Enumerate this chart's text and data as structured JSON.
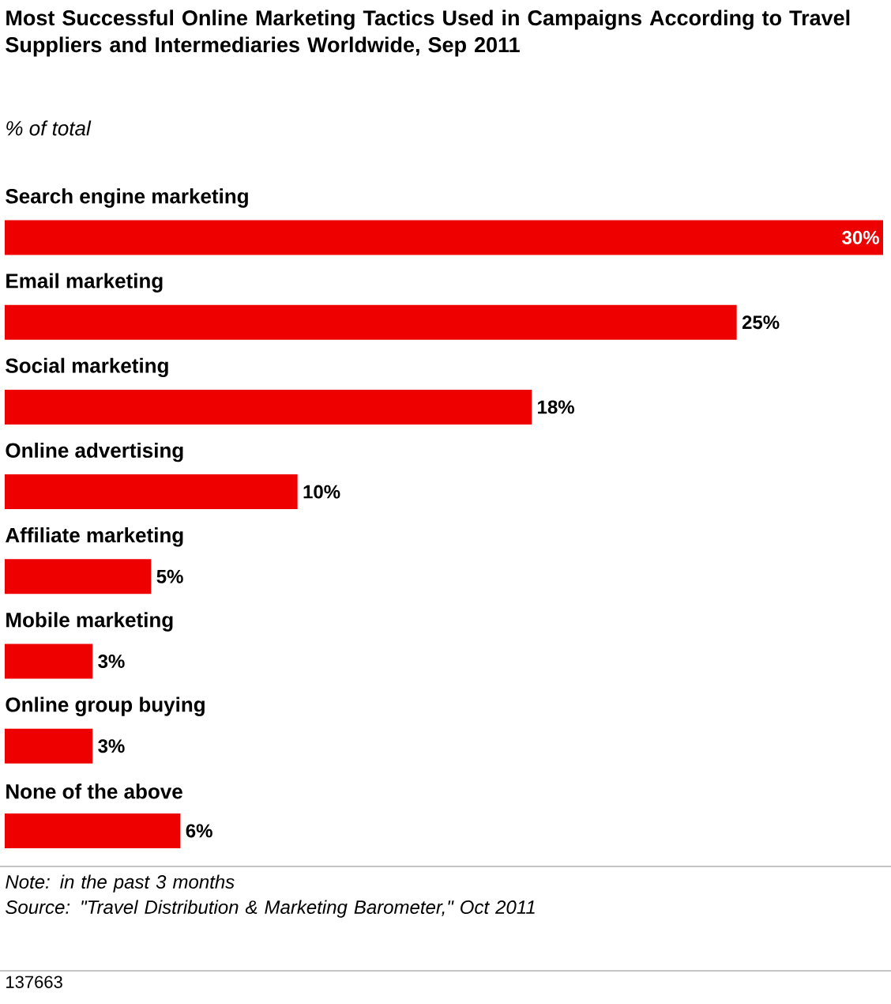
{
  "chart_data": {
    "type": "bar",
    "orientation": "horizontal",
    "title": "Most Successful Online Marketing Tactics Used in Campaigns According to Travel Suppliers and Intermediaries Worldwide, Sep 2011",
    "subtitle": "% of total",
    "categories": [
      "Search engine marketing",
      "Email marketing",
      "Social marketing",
      "Online advertising",
      "Affiliate marketing",
      "Mobile marketing",
      "Online group buying",
      "None of the above"
    ],
    "values": [
      30,
      25,
      18,
      10,
      5,
      3,
      3,
      6
    ],
    "value_labels": [
      "30%",
      "25%",
      "18%",
      "10%",
      "5%",
      "3%",
      "3%",
      "6%"
    ],
    "color": "#ee0000",
    "annotations": [
      "Note: in the past 3 months",
      "Source: \"Travel Distribution & Marketing Barometer,\" Oct 2011",
      "137663"
    ]
  }
}
